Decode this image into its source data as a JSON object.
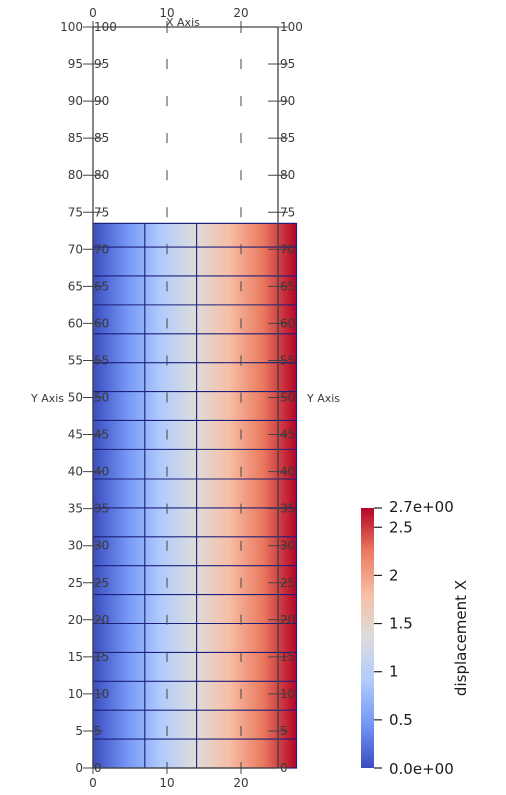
{
  "scene": {
    "x_axis_title": "X Axis",
    "y_axis_title": "Y Axis",
    "x_ticks": [
      0,
      10,
      20
    ],
    "y_ticks": [
      0,
      5,
      10,
      15,
      20,
      25,
      30,
      35,
      40,
      45,
      50,
      55,
      60,
      65,
      70,
      75,
      80,
      85,
      90,
      95,
      100
    ],
    "x_range": [
      0,
      25
    ],
    "y_range": [
      0,
      100
    ],
    "domain_x_range": [
      0,
      27.5
    ],
    "domain_y_range": [
      0,
      73.5
    ],
    "mesh_x_lines": [
      7,
      14,
      25
    ],
    "mesh_y_lines": [
      3.9,
      7.8,
      11.7,
      15.6,
      19.5,
      23.4,
      27.3,
      31.2,
      35.1,
      39.0,
      43.0,
      46.9,
      50.8,
      54.7,
      58.6,
      62.5,
      66.4,
      70.3
    ],
    "field_name": "displacement X",
    "field_range": [
      0.0,
      2.7
    ]
  },
  "colorbar": {
    "title": "displacement X",
    "max_label": "2.7e+00",
    "min_label": "0.0e+00",
    "ticks": [
      {
        "value": 2.5,
        "label": "2.5"
      },
      {
        "value": 2.0,
        "label": "2"
      },
      {
        "value": 1.5,
        "label": "1.5"
      },
      {
        "value": 1.0,
        "label": "1"
      },
      {
        "value": 0.5,
        "label": "0.5"
      }
    ],
    "colormap": "Cool to Warm",
    "color_stops": [
      "#3b4cc0",
      "#7396f5",
      "#b0cbfc",
      "#dddcdc",
      "#f6bfa6",
      "#ea7b60",
      "#b40426"
    ]
  }
}
